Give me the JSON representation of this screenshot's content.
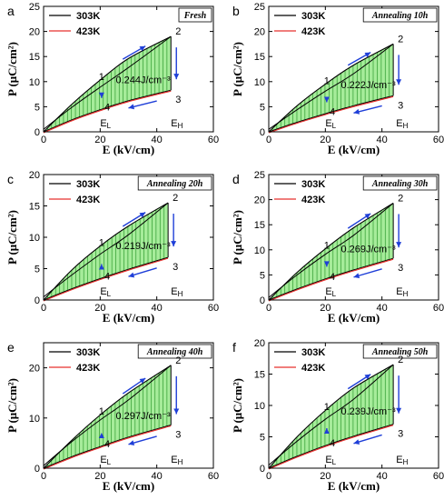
{
  "chart_data": [
    {
      "type": "line",
      "panel_label": "a",
      "title": "Fresh",
      "xlabel": "E (kV/cm)",
      "ylabel": "P (μC/cm²)",
      "xlim": [
        0,
        60
      ],
      "ylim": [
        0,
        25
      ],
      "xticks": [
        0,
        20,
        40,
        60
      ],
      "yticks": [
        0,
        5,
        10,
        15,
        20,
        25
      ],
      "legend": [
        "303K",
        "423K"
      ],
      "legend_position": "top-left",
      "energy_label": "0.244J/cm⁻³",
      "series": [
        {
          "name": "303K",
          "x": [
            0,
            10,
            20,
            30,
            45
          ],
          "y": [
            0,
            5.5,
            10.3,
            14.6,
            19.0
          ]
        },
        {
          "name": "423K",
          "x": [
            0,
            10,
            20,
            30,
            45
          ],
          "y": [
            0,
            2.4,
            4.4,
            6.2,
            8.3
          ]
        }
      ],
      "discharge_curve_303K": {
        "x": [
          45,
          30,
          20,
          10,
          0
        ],
        "y": [
          19.0,
          12.8,
          8.9,
          4.9,
          0.5
        ]
      },
      "annotations": [
        "1",
        "2",
        "3",
        "4",
        "E_L",
        "E_H"
      ]
    },
    {
      "type": "line",
      "panel_label": "b",
      "title": "Annealing 10h",
      "xlabel": "E (kV/cm)",
      "ylabel": "P (μC/cm²)",
      "xlim": [
        0,
        60
      ],
      "ylim": [
        0,
        25
      ],
      "xticks": [
        0,
        20,
        40,
        60
      ],
      "yticks": [
        0,
        5,
        10,
        15,
        20,
        25
      ],
      "legend": [
        "303K",
        "423K"
      ],
      "legend_position": "top-left",
      "energy_label": "0.222J/cm⁻³",
      "series": [
        {
          "name": "303K",
          "x": [
            0,
            10,
            20,
            30,
            44
          ],
          "y": [
            0,
            5.2,
            9.5,
            13.3,
            17.5
          ]
        },
        {
          "name": "423K",
          "x": [
            0,
            10,
            20,
            30,
            44
          ],
          "y": [
            0,
            1.9,
            3.6,
            5.2,
            7.2
          ]
        }
      ],
      "discharge_curve_303K": {
        "x": [
          44,
          30,
          20,
          10,
          0
        ],
        "y": [
          17.5,
          11.6,
          8.1,
          4.4,
          0.5
        ]
      },
      "annotations": [
        "1",
        "2",
        "3",
        "4",
        "E_L",
        "E_H"
      ]
    },
    {
      "type": "line",
      "panel_label": "c",
      "title": "Annealing 20h",
      "xlabel": "E (kV/cm)",
      "ylabel": "P (μC/cm²)",
      "xlim": [
        0,
        60
      ],
      "ylim": [
        0,
        20
      ],
      "xticks": [
        0,
        20,
        40,
        60
      ],
      "yticks": [
        0,
        5,
        10,
        15,
        20
      ],
      "legend": [
        "303K",
        "423K"
      ],
      "legend_position": "top-left",
      "energy_label": "0.219J/cm⁻³",
      "series": [
        {
          "name": "303K",
          "x": [
            0,
            10,
            20,
            30,
            44
          ],
          "y": [
            0,
            4.8,
            8.6,
            11.8,
            15.5
          ]
        },
        {
          "name": "423K",
          "x": [
            0,
            10,
            20,
            30,
            44
          ],
          "y": [
            0,
            1.8,
            3.4,
            4.9,
            6.8
          ]
        }
      ],
      "discharge_curve_303K": {
        "x": [
          44,
          30,
          20,
          10,
          0
        ],
        "y": [
          15.5,
          10.4,
          7.3,
          4.0,
          0.5
        ]
      },
      "annotations": [
        "1",
        "2",
        "3",
        "4",
        "E_L",
        "E_H"
      ]
    },
    {
      "type": "line",
      "panel_label": "d",
      "title": "Annealing 30h",
      "xlabel": "E (kV/cm)",
      "ylabel": "P (μC/cm²)",
      "xlim": [
        0,
        60
      ],
      "ylim": [
        0,
        25
      ],
      "xticks": [
        0,
        20,
        40,
        60
      ],
      "yticks": [
        0,
        5,
        10,
        15,
        20,
        25
      ],
      "legend": [
        "303K",
        "423K"
      ],
      "legend_position": "top-left",
      "energy_label": "0.269J/cm⁻³",
      "series": [
        {
          "name": "303K",
          "x": [
            0,
            10,
            20,
            30,
            44
          ],
          "y": [
            0,
            5.5,
            10.2,
            14.4,
            19.3
          ]
        },
        {
          "name": "423K",
          "x": [
            0,
            10,
            20,
            30,
            44
          ],
          "y": [
            0,
            2.2,
            4.2,
            6.0,
            8.3
          ]
        }
      ],
      "discharge_curve_303K": {
        "x": [
          44,
          30,
          20,
          10,
          0
        ],
        "y": [
          19.3,
          12.9,
          9.1,
          5.0,
          0.5
        ]
      },
      "annotations": [
        "1",
        "2",
        "3",
        "4",
        "E_L",
        "E_H"
      ]
    },
    {
      "type": "line",
      "panel_label": "e",
      "title": "Annealing 40h",
      "xlabel": "E (kV/cm)",
      "ylabel": "P (μC/cm²)",
      "xlim": [
        0,
        60
      ],
      "ylim": [
        0,
        25
      ],
      "xticks": [
        0,
        20,
        40,
        60
      ],
      "yticks": [
        0,
        10,
        20
      ],
      "legend": [
        "303K",
        "423K"
      ],
      "legend_position": "top-left",
      "energy_label": "0.297J/cm⁻³",
      "series": [
        {
          "name": "303K",
          "x": [
            0,
            10,
            20,
            30,
            45
          ],
          "y": [
            0,
            5.6,
            10.6,
            15.0,
            20.5
          ]
        },
        {
          "name": "423K",
          "x": [
            0,
            10,
            20,
            30,
            45
          ],
          "y": [
            0,
            2.3,
            4.3,
            6.2,
            8.6
          ]
        }
      ],
      "discharge_curve_303K": {
        "x": [
          45,
          30,
          20,
          10,
          0
        ],
        "y": [
          20.5,
          13.6,
          9.6,
          5.3,
          0.5
        ]
      },
      "annotations": [
        "1",
        "2",
        "3",
        "4",
        "E_L",
        "E_H"
      ]
    },
    {
      "type": "line",
      "panel_label": "f",
      "title": "Annealing 50h",
      "xlabel": "E (kV/cm)",
      "ylabel": "P (μC/cm²)",
      "xlim": [
        0,
        60
      ],
      "ylim": [
        0,
        20
      ],
      "xticks": [
        0,
        20,
        40,
        60
      ],
      "yticks": [
        0,
        5,
        10,
        15,
        20
      ],
      "legend": [
        "303K",
        "423K"
      ],
      "legend_position": "top-left",
      "energy_label": "0.239J/cm⁻³",
      "series": [
        {
          "name": "303K",
          "x": [
            0,
            10,
            20,
            30,
            44
          ],
          "y": [
            0,
            5.0,
            9.2,
            12.8,
            16.5
          ]
        },
        {
          "name": "423K",
          "x": [
            0,
            10,
            20,
            30,
            44
          ],
          "y": [
            0,
            1.9,
            3.6,
            5.1,
            7.0
          ]
        }
      ],
      "discharge_curve_303K": {
        "x": [
          44,
          30,
          20,
          10,
          0
        ],
        "y": [
          16.5,
          11.0,
          7.8,
          4.3,
          0.5
        ]
      },
      "annotations": [
        "1",
        "2",
        "3",
        "4",
        "E_L",
        "E_H"
      ]
    }
  ]
}
